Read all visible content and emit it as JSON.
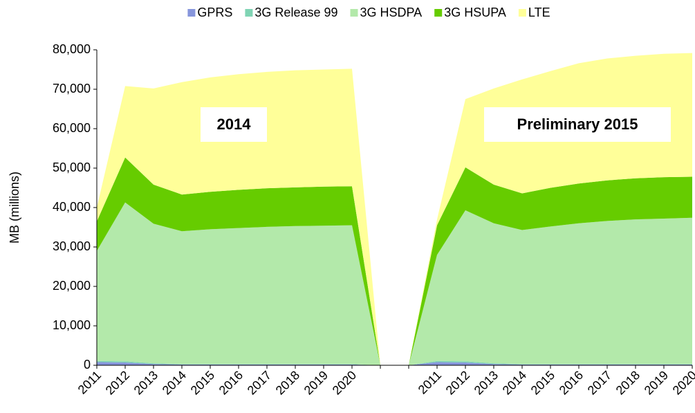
{
  "chart_data": {
    "type": "stacked_area",
    "categories": [
      "2011",
      "2012",
      "2013",
      "2014",
      "2015",
      "2016",
      "2017",
      "2018",
      "2019",
      "2020",
      null,
      null,
      "2011",
      "2012",
      "2013",
      "2014",
      "2015",
      "2016",
      "2017",
      "2018",
      "2019",
      "2020"
    ],
    "series": [
      {
        "name": "GPRS",
        "color": "#8796dc",
        "values": [
          800,
          700,
          300,
          200,
          200,
          200,
          200,
          200,
          200,
          200,
          0,
          0,
          800,
          700,
          300,
          200,
          200,
          200,
          200,
          200,
          200,
          200
        ]
      },
      {
        "name": "3G Release 99",
        "color": "#80d4b4",
        "values": [
          300,
          300,
          200,
          100,
          100,
          100,
          100,
          100,
          100,
          100,
          0,
          0,
          300,
          300,
          200,
          100,
          100,
          100,
          100,
          100,
          100,
          100
        ]
      },
      {
        "name": "3G HSDPA",
        "color": "#b3e9aa",
        "values": [
          27900,
          40300,
          35400,
          33700,
          34200,
          34500,
          34800,
          35000,
          35100,
          35200,
          0,
          0,
          26900,
          38300,
          35500,
          34000,
          34900,
          35700,
          36300,
          36700,
          36900,
          37100
        ]
      },
      {
        "name": "3G HSUPA",
        "color": "#66cc00",
        "values": [
          7500,
          11400,
          9900,
          9300,
          9500,
          9700,
          9800,
          9800,
          9900,
          9900,
          0,
          0,
          7500,
          10900,
          9800,
          9300,
          9800,
          10100,
          10300,
          10400,
          10500,
          10400
        ]
      },
      {
        "name": "LTE",
        "color": "#ffff99",
        "values": [
          3500,
          18100,
          24400,
          28500,
          29000,
          29300,
          29500,
          29700,
          29700,
          29800,
          0,
          0,
          1500,
          17300,
          24400,
          28900,
          29600,
          30500,
          30900,
          31100,
          31300,
          31400
        ]
      }
    ],
    "y_label": "MB (millions)",
    "ylim": [
      0,
      80000
    ],
    "yticks": [
      0,
      {
        "value": 10000,
        "label": "10,000"
      },
      {
        "value": 20000,
        "label": "20,000"
      },
      {
        "value": 30000,
        "label": "30,000"
      },
      {
        "value": 40000,
        "label": "40,000"
      },
      {
        "value": 50000,
        "label": "50,000"
      },
      {
        "value": 60000,
        "label": "60,000"
      },
      {
        "value": 70000,
        "label": "70,000"
      },
      {
        "value": 80000,
        "label": "80,000"
      }
    ],
    "annotations": [
      "2014",
      "Preliminary 2015"
    ],
    "legend": "top"
  }
}
